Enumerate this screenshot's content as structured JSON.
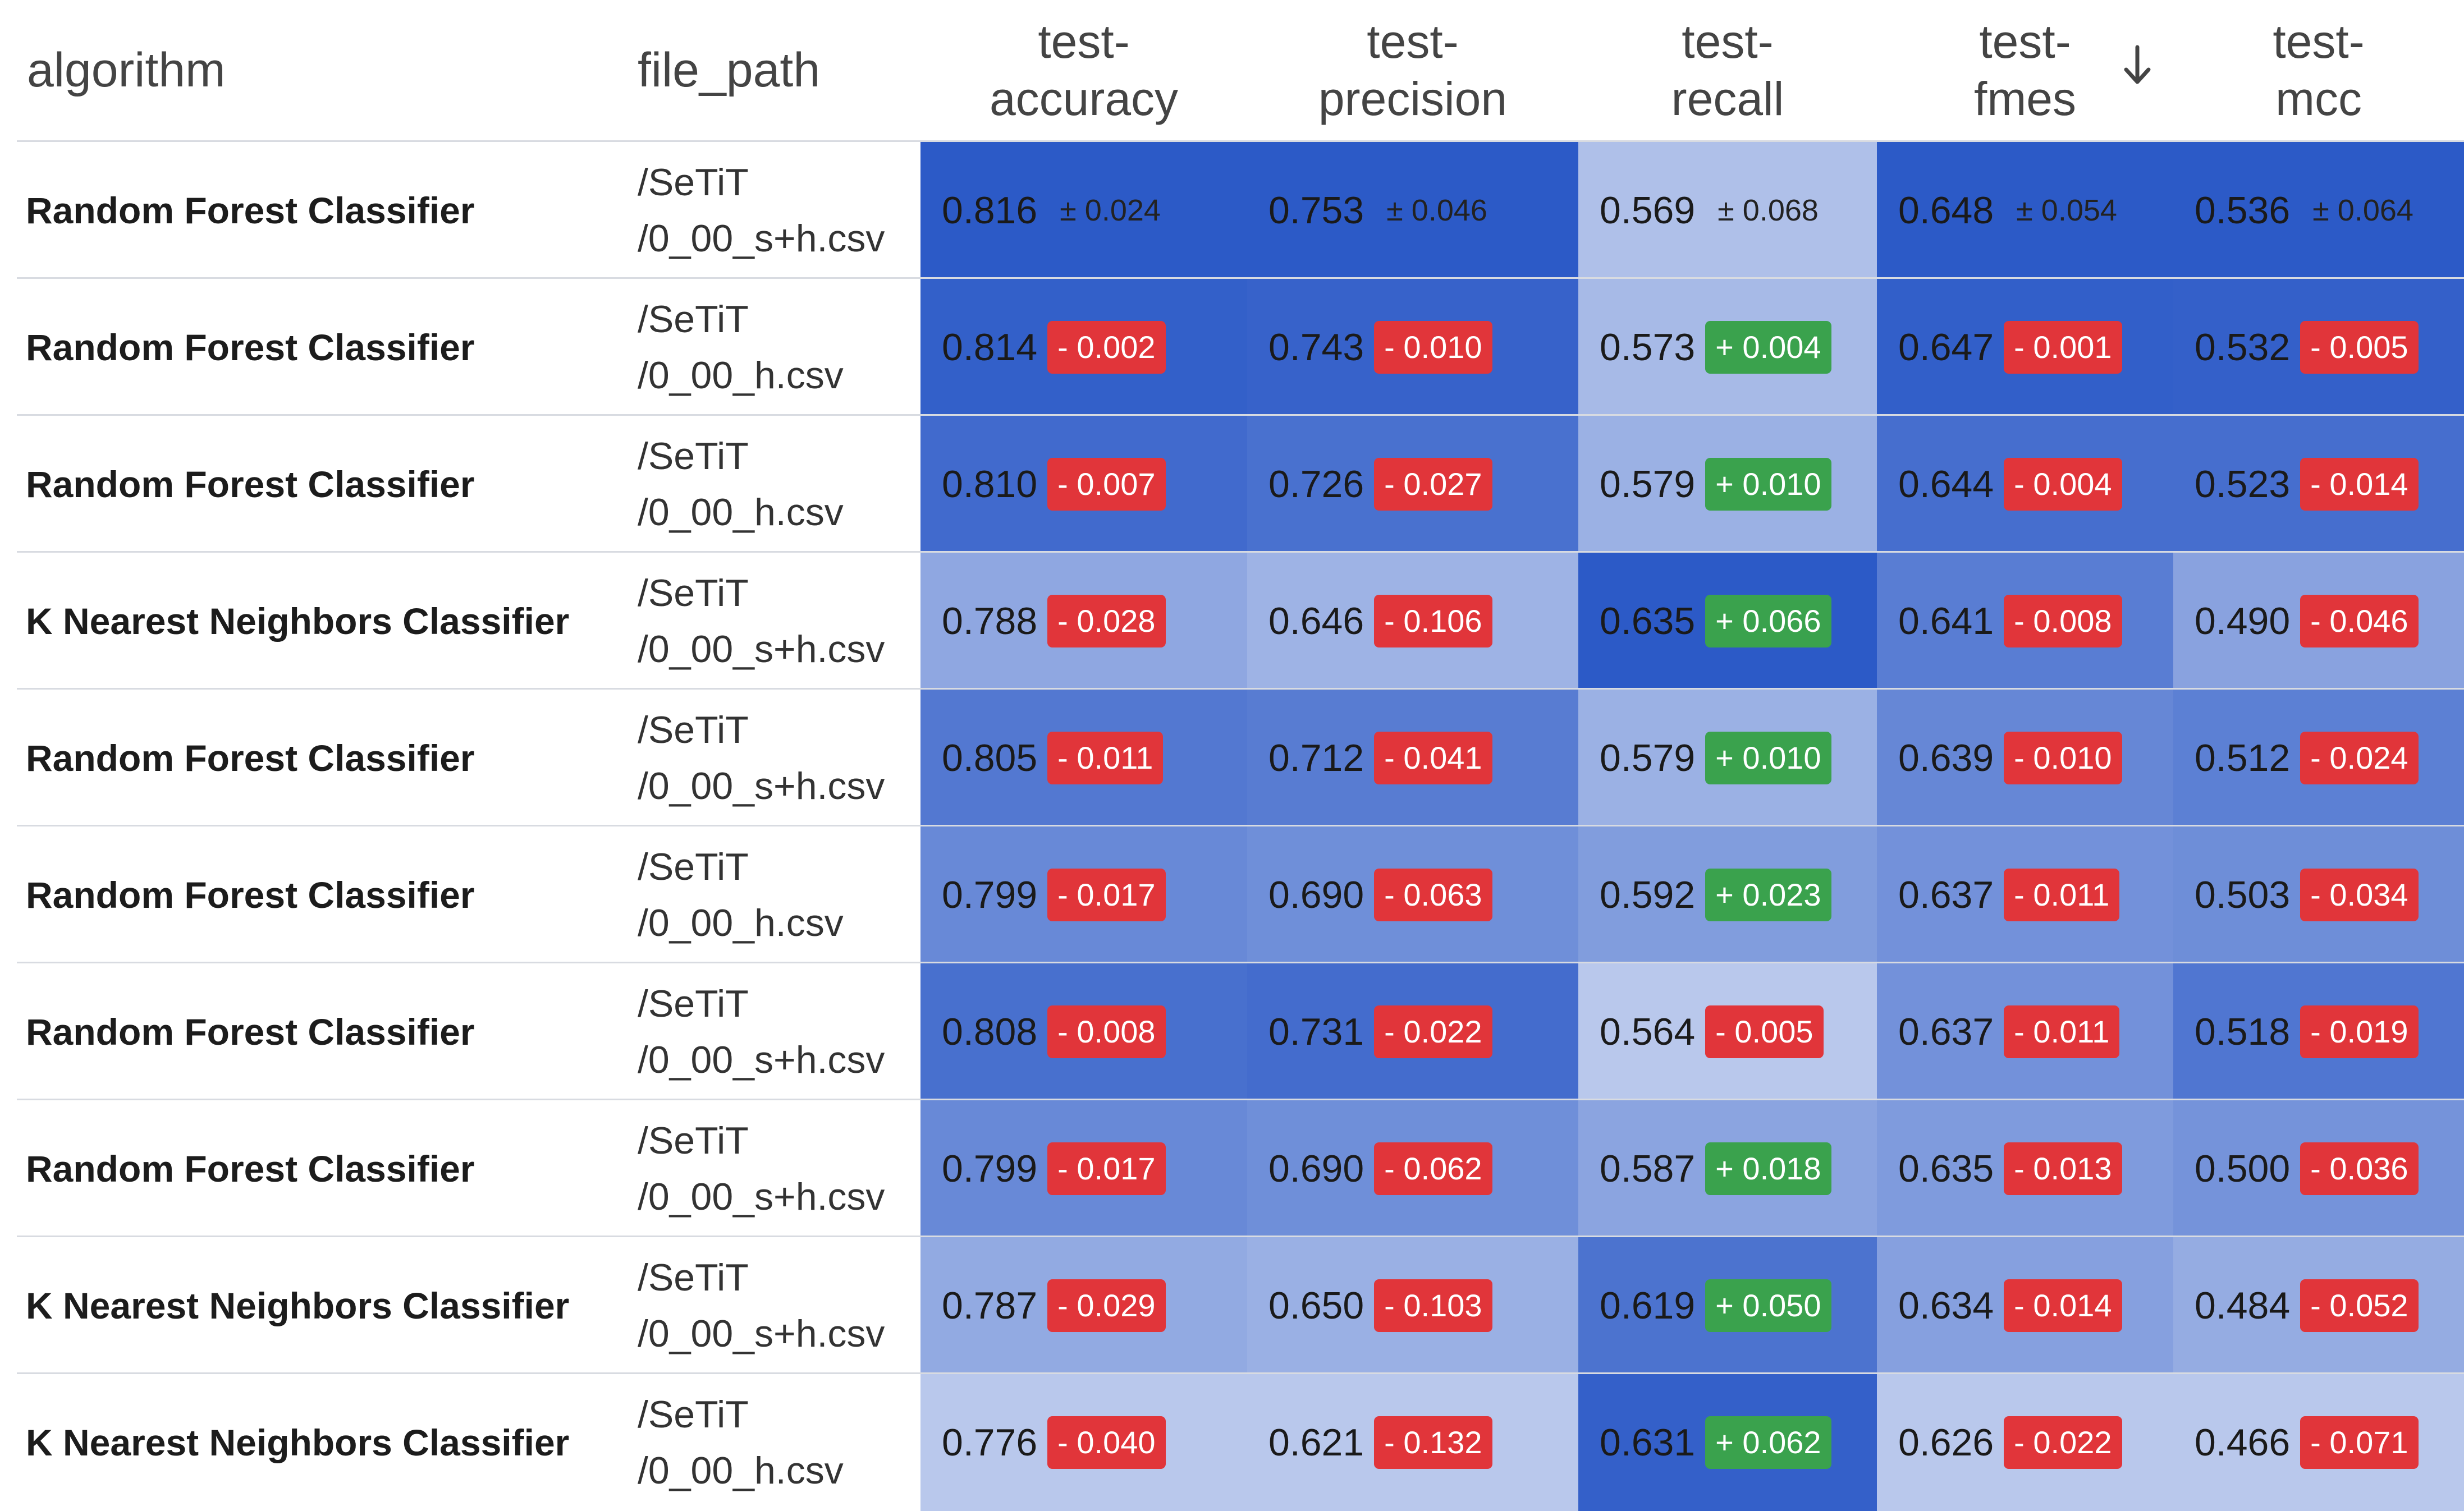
{
  "headers": {
    "algorithm": "algorithm",
    "file_path": "file_path",
    "metrics": [
      {
        "line1": "test-",
        "line2": "accuracy"
      },
      {
        "line1": "test-",
        "line2": "precision"
      },
      {
        "line1": "test-",
        "line2": "recall"
      },
      {
        "line1": "test-",
        "line2": "fmes"
      },
      {
        "line1": "test-",
        "line2": "mcc"
      }
    ],
    "sort_icon": "arrow-down-icon"
  },
  "rows": [
    {
      "algorithm": "Random Forest Classifier",
      "file_path": [
        "/SeTiT",
        "/0_00_s+h.csv"
      ],
      "cells": [
        {
          "value": "0.816",
          "delta": "± 0.024",
          "kind": "sd"
        },
        {
          "value": "0.753",
          "delta": "± 0.046",
          "kind": "sd"
        },
        {
          "value": "0.569",
          "delta": "± 0.068",
          "kind": "sd"
        },
        {
          "value": "0.648",
          "delta": "± 0.054",
          "kind": "sd"
        },
        {
          "value": "0.536",
          "delta": "± 0.064",
          "kind": "sd"
        }
      ]
    },
    {
      "algorithm": "Random Forest Classifier",
      "file_path": [
        "/SeTiT",
        "/0_00_h.csv"
      ],
      "cells": [
        {
          "value": "0.814",
          "delta": "- 0.002",
          "kind": "neg"
        },
        {
          "value": "0.743",
          "delta": "- 0.010",
          "kind": "neg"
        },
        {
          "value": "0.573",
          "delta": "+ 0.004",
          "kind": "pos"
        },
        {
          "value": "0.647",
          "delta": "- 0.001",
          "kind": "neg"
        },
        {
          "value": "0.532",
          "delta": "- 0.005",
          "kind": "neg"
        }
      ]
    },
    {
      "algorithm": "Random Forest Classifier",
      "file_path": [
        "/SeTiT",
        "/0_00_h.csv"
      ],
      "cells": [
        {
          "value": "0.810",
          "delta": "- 0.007",
          "kind": "neg"
        },
        {
          "value": "0.726",
          "delta": "- 0.027",
          "kind": "neg"
        },
        {
          "value": "0.579",
          "delta": "+ 0.010",
          "kind": "pos"
        },
        {
          "value": "0.644",
          "delta": "- 0.004",
          "kind": "neg"
        },
        {
          "value": "0.523",
          "delta": "- 0.014",
          "kind": "neg"
        }
      ]
    },
    {
      "algorithm": "K Nearest Neighbors Classifier",
      "file_path": [
        "/SeTiT",
        "/0_00_s+h.csv"
      ],
      "cells": [
        {
          "value": "0.788",
          "delta": "- 0.028",
          "kind": "neg"
        },
        {
          "value": "0.646",
          "delta": "- 0.106",
          "kind": "neg"
        },
        {
          "value": "0.635",
          "delta": "+ 0.066",
          "kind": "pos"
        },
        {
          "value": "0.641",
          "delta": "- 0.008",
          "kind": "neg"
        },
        {
          "value": "0.490",
          "delta": "- 0.046",
          "kind": "neg"
        }
      ]
    },
    {
      "algorithm": "Random Forest Classifier",
      "file_path": [
        "/SeTiT",
        "/0_00_s+h.csv"
      ],
      "cells": [
        {
          "value": "0.805",
          "delta": "- 0.011",
          "kind": "neg"
        },
        {
          "value": "0.712",
          "delta": "- 0.041",
          "kind": "neg"
        },
        {
          "value": "0.579",
          "delta": "+ 0.010",
          "kind": "pos"
        },
        {
          "value": "0.639",
          "delta": "- 0.010",
          "kind": "neg"
        },
        {
          "value": "0.512",
          "delta": "- 0.024",
          "kind": "neg"
        }
      ]
    },
    {
      "algorithm": "Random Forest Classifier",
      "file_path": [
        "/SeTiT",
        "/0_00_h.csv"
      ],
      "cells": [
        {
          "value": "0.799",
          "delta": "- 0.017",
          "kind": "neg"
        },
        {
          "value": "0.690",
          "delta": "- 0.063",
          "kind": "neg"
        },
        {
          "value": "0.592",
          "delta": "+ 0.023",
          "kind": "pos"
        },
        {
          "value": "0.637",
          "delta": "- 0.011",
          "kind": "neg"
        },
        {
          "value": "0.503",
          "delta": "- 0.034",
          "kind": "neg"
        }
      ]
    },
    {
      "algorithm": "Random Forest Classifier",
      "file_path": [
        "/SeTiT",
        "/0_00_s+h.csv"
      ],
      "cells": [
        {
          "value": "0.808",
          "delta": "- 0.008",
          "kind": "neg"
        },
        {
          "value": "0.731",
          "delta": "- 0.022",
          "kind": "neg"
        },
        {
          "value": "0.564",
          "delta": "- 0.005",
          "kind": "neg"
        },
        {
          "value": "0.637",
          "delta": "- 0.011",
          "kind": "neg"
        },
        {
          "value": "0.518",
          "delta": "- 0.019",
          "kind": "neg"
        }
      ]
    },
    {
      "algorithm": "Random Forest Classifier",
      "file_path": [
        "/SeTiT",
        "/0_00_s+h.csv"
      ],
      "cells": [
        {
          "value": "0.799",
          "delta": "- 0.017",
          "kind": "neg"
        },
        {
          "value": "0.690",
          "delta": "- 0.062",
          "kind": "neg"
        },
        {
          "value": "0.587",
          "delta": "+ 0.018",
          "kind": "pos"
        },
        {
          "value": "0.635",
          "delta": "- 0.013",
          "kind": "neg"
        },
        {
          "value": "0.500",
          "delta": "- 0.036",
          "kind": "neg"
        }
      ]
    },
    {
      "algorithm": "K Nearest Neighbors Classifier",
      "file_path": [
        "/SeTiT",
        "/0_00_s+h.csv"
      ],
      "cells": [
        {
          "value": "0.787",
          "delta": "- 0.029",
          "kind": "neg"
        },
        {
          "value": "0.650",
          "delta": "- 0.103",
          "kind": "neg"
        },
        {
          "value": "0.619",
          "delta": "+ 0.050",
          "kind": "pos"
        },
        {
          "value": "0.634",
          "delta": "- 0.014",
          "kind": "neg"
        },
        {
          "value": "0.484",
          "delta": "- 0.052",
          "kind": "neg"
        }
      ]
    },
    {
      "algorithm": "K Nearest Neighbors Classifier",
      "file_path": [
        "/SeTiT",
        "/0_00_h.csv"
      ],
      "cells": [
        {
          "value": "0.776",
          "delta": "- 0.040",
          "kind": "neg"
        },
        {
          "value": "0.621",
          "delta": "- 0.132",
          "kind": "neg"
        },
        {
          "value": "0.631",
          "delta": "+ 0.062",
          "kind": "pos"
        },
        {
          "value": "0.626",
          "delta": "- 0.022",
          "kind": "neg"
        },
        {
          "value": "0.466",
          "delta": "- 0.071",
          "kind": "neg"
        }
      ]
    }
  ],
  "colors": {
    "badge_negative": "#e1353a",
    "badge_positive": "#3aa24d",
    "heat_dark": "#2c5ac7",
    "heat_light": "#b9c8ec",
    "divider": "#d8dbe1"
  }
}
